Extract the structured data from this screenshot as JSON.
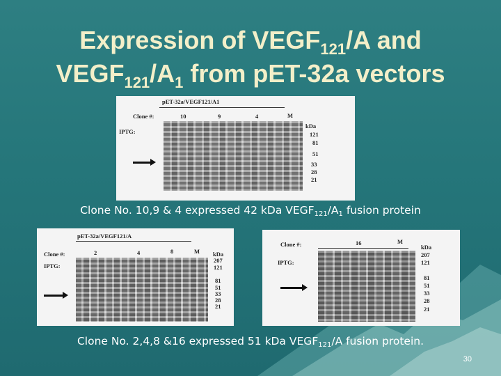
{
  "slide": {
    "title_line1": "Expression of VEGF",
    "title_sub1": "121",
    "title_line1_end": "/A and",
    "title_line2_start": "VEGF",
    "title_sub2": "121",
    "title_line2_mid": "/A",
    "title_sub3": "1",
    "title_line2_end": " from pET-32a vectors",
    "caption1_start": "Clone No. 10,9 & 4 expressed 42 kDa VEGF",
    "caption1_sub1": "121",
    "caption1_mid": "/A",
    "caption1_sub2": "1",
    "caption1_end": " fusion protein",
    "caption2_start": "Clone No. 2,4,8 &16 expressed 51 kDa VEGF",
    "caption2_sub": "121",
    "caption2_end": "/A  fusion protein.",
    "page_number": "30"
  },
  "gel1": {
    "header": "pET-32a/VEGF121/A1",
    "clone_label": "Clone #:",
    "iptg_label": "IPTG:",
    "clones": [
      "10",
      "9",
      "4",
      "M"
    ],
    "kda_label": "kDa",
    "markers": [
      "121",
      "81",
      "51",
      "33",
      "28",
      "21"
    ]
  },
  "gel2": {
    "header": "pET-32a/VEGF121/A",
    "clone_label": "Clone #:",
    "iptg_label": "IPTG:",
    "clones": [
      "2",
      "4",
      "8",
      "M"
    ],
    "kda_label": "kDa",
    "markers": [
      "207",
      "121",
      "81",
      "51",
      "33",
      "28",
      "21"
    ]
  },
  "gel3": {
    "clone_label": "Clone #:",
    "iptg_label": "IPTG:",
    "clones": [
      "16",
      "M"
    ],
    "kda_label": "kDa",
    "markers": [
      "207",
      "121",
      "81",
      "51",
      "33",
      "28",
      "21"
    ]
  },
  "colors": {
    "background": "#2a787c",
    "title": "#f3efc9",
    "caption": "#ffffff"
  }
}
